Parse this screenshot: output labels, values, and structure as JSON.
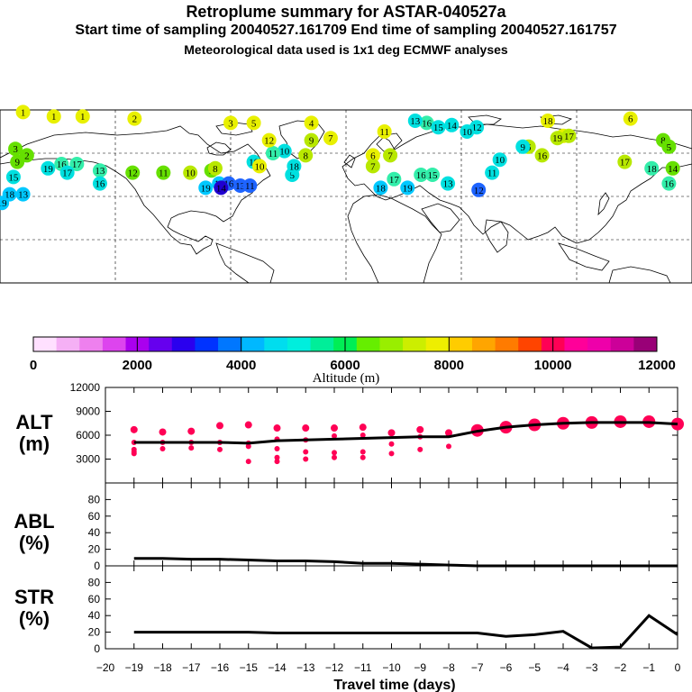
{
  "header": {
    "title": "Retroplume summary for ASTAR-040527a",
    "sampling": "Start time of sampling 20040527.161709      End time of sampling 20040527.161757",
    "met": "Meteorological data used is 1x1 deg ECMWF analyses"
  },
  "map": {
    "labels": [
      {
        "t": "1",
        "lon": -168,
        "lat": 89,
        "c": "#e8f000"
      },
      {
        "t": "1",
        "lon": -152,
        "lat": 87,
        "c": "#e8f000"
      },
      {
        "t": "1",
        "lon": -137,
        "lat": 87,
        "c": "#e8f000"
      },
      {
        "t": "2",
        "lon": -110,
        "lat": 86,
        "c": "#e8f000"
      },
      {
        "t": "3",
        "lon": -60,
        "lat": 84,
        "c": "#e8f000"
      },
      {
        "t": "5",
        "lon": -48,
        "lat": 84,
        "c": "#e8f000"
      },
      {
        "t": "4",
        "lon": -18,
        "lat": 84,
        "c": "#e8f000"
      },
      {
        "t": "6",
        "lon": 148,
        "lat": 86,
        "c": "#e8f000"
      },
      {
        "t": "6",
        "lon": 113,
        "lat": 78,
        "c": "#e8f000"
      },
      {
        "t": "6",
        "lon": 95,
        "lat": 73,
        "c": "#b8e800"
      },
      {
        "t": "18",
        "lon": 105,
        "lat": 85,
        "c": "#e8f000"
      },
      {
        "t": "16",
        "lon": 42,
        "lat": 84,
        "c": "#33eeaa"
      },
      {
        "t": "13",
        "lon": 36,
        "lat": 85,
        "c": "#00e0e0"
      },
      {
        "t": "15",
        "lon": 48,
        "lat": 82,
        "c": "#00e0e0"
      },
      {
        "t": "14",
        "lon": 55,
        "lat": 83,
        "c": "#00e0e0"
      },
      {
        "t": "12",
        "lon": 68,
        "lat": 82,
        "c": "#00e0e0"
      },
      {
        "t": "10",
        "lon": 63,
        "lat": 80,
        "c": "#00e0e0"
      },
      {
        "t": "11",
        "lon": 20,
        "lat": 80,
        "c": "#e8f000"
      },
      {
        "t": "9",
        "lon": -18,
        "lat": 76,
        "c": "#b8e800"
      },
      {
        "t": "7",
        "lon": -8,
        "lat": 77,
        "c": "#e8f000"
      },
      {
        "t": "8",
        "lon": -21,
        "lat": 69,
        "c": "#b8e800"
      },
      {
        "t": "10",
        "lon": -32,
        "lat": 71,
        "c": "#00e0e0"
      },
      {
        "t": "10",
        "lon": -48,
        "lat": 66,
        "c": "#00e0e0"
      },
      {
        "t": "11",
        "lon": -38,
        "lat": 70,
        "c": "#33eeaa"
      },
      {
        "t": "5",
        "lon": -28,
        "lat": 60,
        "c": "#00e0e0"
      },
      {
        "t": "7",
        "lon": 23,
        "lat": 69,
        "c": "#b8e800"
      },
      {
        "t": "6",
        "lon": 14,
        "lat": 69,
        "c": "#e8f000"
      },
      {
        "t": "7",
        "lon": 14,
        "lat": 64,
        "c": "#b8e800"
      },
      {
        "t": "17",
        "lon": 25,
        "lat": 58,
        "c": "#33eeaa"
      },
      {
        "t": "16",
        "lon": 39,
        "lat": 60,
        "c": "#33eeaa"
      },
      {
        "t": "15",
        "lon": 45,
        "lat": 60,
        "c": "#33eeaa"
      },
      {
        "t": "13",
        "lon": 53,
        "lat": 56,
        "c": "#00e0e0"
      },
      {
        "t": "19",
        "lon": 32,
        "lat": 54,
        "c": "#00c8ff"
      },
      {
        "t": "18",
        "lon": 18,
        "lat": 54,
        "c": "#00c8ff"
      },
      {
        "t": "12",
        "lon": 69,
        "lat": 53,
        "c": "#1e64ff"
      },
      {
        "t": "11",
        "lon": 76,
        "lat": 61,
        "c": "#00e0e0"
      },
      {
        "t": "10",
        "lon": 80,
        "lat": 67,
        "c": "#00e0e0"
      },
      {
        "t": "9",
        "lon": 92,
        "lat": 73,
        "c": "#00e0e0"
      },
      {
        "t": "16",
        "lon": 102,
        "lat": 69,
        "c": "#b8e800"
      },
      {
        "t": "19",
        "lon": 110,
        "lat": 77,
        "c": "#b8e800"
      },
      {
        "t": "17",
        "lon": 116,
        "lat": 78,
        "c": "#b8e800"
      },
      {
        "t": "17",
        "lon": 145,
        "lat": 66,
        "c": "#b8e800"
      },
      {
        "t": "8",
        "lon": 165,
        "lat": 76,
        "c": "#66e000"
      },
      {
        "t": "5",
        "lon": 168,
        "lat": 73,
        "c": "#66e000"
      },
      {
        "t": "3",
        "lon": -172,
        "lat": 72,
        "c": "#66e000"
      },
      {
        "t": "2",
        "lon": -166,
        "lat": 69,
        "c": "#66e000"
      },
      {
        "t": "18",
        "lon": 159,
        "lat": 63,
        "c": "#33eeaa"
      },
      {
        "t": "14",
        "lon": 170,
        "lat": 63,
        "c": "#66e000"
      },
      {
        "t": "9",
        "lon": -171,
        "lat": 66,
        "c": "#66e000"
      },
      {
        "t": "16",
        "lon": 168,
        "lat": 56,
        "c": "#33eeaa"
      },
      {
        "t": "15",
        "lon": -173,
        "lat": 59,
        "c": "#00e0e0"
      },
      {
        "t": "13",
        "lon": -168,
        "lat": 51,
        "c": "#00c8ff"
      },
      {
        "t": "18",
        "lon": -175,
        "lat": 51,
        "c": "#00c8ff"
      },
      {
        "t": "19",
        "lon": -179,
        "lat": 47,
        "c": "#00c8ff"
      },
      {
        "t": "19",
        "lon": -155,
        "lat": 63,
        "c": "#00e0e0"
      },
      {
        "t": "17",
        "lon": -140,
        "lat": 65,
        "c": "#33eeaa"
      },
      {
        "t": "16",
        "lon": -148,
        "lat": 65,
        "c": "#33eeaa"
      },
      {
        "t": "17",
        "lon": -145,
        "lat": 61,
        "c": "#00e0e0"
      },
      {
        "t": "13",
        "lon": -128,
        "lat": 62,
        "c": "#33eeaa"
      },
      {
        "t": "16",
        "lon": -128,
        "lat": 56,
        "c": "#00e0e0"
      },
      {
        "t": "12",
        "lon": -111,
        "lat": 61,
        "c": "#66e000"
      },
      {
        "t": "11",
        "lon": -95,
        "lat": 61,
        "c": "#66e000"
      },
      {
        "t": "10",
        "lon": -81,
        "lat": 61,
        "c": "#b8e800"
      },
      {
        "t": "9",
        "lon": -70,
        "lat": 62,
        "c": "#66e000"
      },
      {
        "t": "19",
        "lon": -73,
        "lat": 54,
        "c": "#00c8ff"
      },
      {
        "t": "17",
        "lon": -66,
        "lat": 56,
        "c": "#00c8ff"
      },
      {
        "t": "16",
        "lon": -61,
        "lat": 56,
        "c": "#1e64ff"
      },
      {
        "t": "13",
        "lon": -55,
        "lat": 55,
        "c": "#1e64ff"
      },
      {
        "t": "14",
        "lon": -65,
        "lat": 54,
        "c": "#2000d0"
      },
      {
        "t": "11",
        "lon": -50,
        "lat": 55,
        "c": "#1e64ff"
      },
      {
        "t": "8",
        "lon": -68,
        "lat": 63,
        "c": "#b8e800"
      },
      {
        "t": "18",
        "lon": -27,
        "lat": 64,
        "c": "#00e0e0"
      },
      {
        "t": "10",
        "lon": -45,
        "lat": 64,
        "c": "#e8f000"
      },
      {
        "t": "12",
        "lon": -40,
        "lat": 76,
        "c": "#e8f000"
      }
    ]
  },
  "colorbar": {
    "colors": [
      "#ffe0ff",
      "#f5b0f5",
      "#ee80ee",
      "#dd44ee",
      "#aa00ee",
      "#6600ee",
      "#2a00ee",
      "#0033ff",
      "#0077ff",
      "#00b8ff",
      "#00ddee",
      "#00eedd",
      "#00ee99",
      "#00ee55",
      "#66ee00",
      "#99ee00",
      "#ccee00",
      "#eeee00",
      "#ffcc00",
      "#ffa500",
      "#ff7b00",
      "#ff4400",
      "#ff0055",
      "#ff0099",
      "#ee00aa",
      "#cc0099",
      "#990077"
    ],
    "tick_values": [
      0,
      2000,
      4000,
      6000,
      8000,
      10000,
      12000
    ],
    "tick_labels": [
      "0",
      "2000",
      "4000",
      "6000",
      "8000",
      "10000",
      "12000"
    ],
    "label": "Altitude (m)"
  },
  "chart_data": [
    {
      "type": "line",
      "panel": "ALT",
      "ylabel": "ALT (m)",
      "ylim": [
        0,
        12000
      ],
      "yticks": [
        3000,
        6000,
        9000,
        12000
      ],
      "x": [
        -19,
        -18,
        -17,
        -16,
        -15,
        -14,
        -13,
        -12,
        -11,
        -10,
        -9,
        -8,
        -7,
        -6,
        -5,
        -4,
        -3,
        -2,
        -1,
        0
      ],
      "values": [
        5100,
        5100,
        5100,
        5100,
        5000,
        5300,
        5400,
        5500,
        5600,
        5700,
        5800,
        5800,
        6500,
        7000,
        7300,
        7500,
        7600,
        7600,
        7600,
        7400
      ],
      "clusters": [
        {
          "x": -19,
          "y": [
            6700,
            5100,
            4200,
            3900,
            3700
          ]
        },
        {
          "x": -18,
          "y": [
            6400,
            5100,
            4300
          ]
        },
        {
          "x": -17,
          "y": [
            6500,
            5100,
            4400
          ]
        },
        {
          "x": -16,
          "y": [
            7200,
            5100,
            4200
          ]
        },
        {
          "x": -15,
          "y": [
            7300,
            5000,
            4600,
            2700
          ]
        },
        {
          "x": -14,
          "y": [
            6900,
            5500,
            4300,
            3200,
            2700
          ]
        },
        {
          "x": -13,
          "y": [
            6900,
            5400,
            3900,
            3000
          ]
        },
        {
          "x": -12,
          "y": [
            6900,
            5900,
            3800,
            3200
          ]
        },
        {
          "x": -11,
          "y": [
            7000,
            6000,
            3900,
            3200
          ]
        },
        {
          "x": -10,
          "y": [
            6300,
            4900,
            3700
          ]
        },
        {
          "x": -9,
          "y": [
            6700,
            5800,
            4200
          ]
        },
        {
          "x": -8,
          "y": [
            6300,
            6000,
            4600
          ]
        },
        {
          "x": -7,
          "y": [
            6600
          ]
        },
        {
          "x": -6,
          "y": [
            7000
          ]
        },
        {
          "x": -5,
          "y": [
            7300
          ]
        },
        {
          "x": -4,
          "y": [
            7500
          ]
        },
        {
          "x": -3,
          "y": [
            7600
          ]
        },
        {
          "x": -2,
          "y": [
            7700
          ]
        },
        {
          "x": -1,
          "y": [
            7700
          ]
        },
        {
          "x": 0,
          "y": [
            7400
          ]
        }
      ]
    },
    {
      "type": "line",
      "panel": "ABL",
      "ylabel": "ABL (%)",
      "ylim": [
        0,
        100
      ],
      "yticks": [
        0,
        20,
        40,
        60,
        80
      ],
      "x": [
        -19,
        -18,
        -17,
        -16,
        -15,
        -14,
        -13,
        -12,
        -11,
        -10,
        -9,
        -8,
        -7,
        -6,
        -5,
        -4,
        -3,
        -2,
        -1,
        0
      ],
      "values": [
        9,
        9,
        8,
        8,
        7,
        6,
        6,
        5,
        3,
        3,
        2,
        1,
        0,
        0,
        0,
        0,
        0,
        0,
        0,
        0
      ]
    },
    {
      "type": "line",
      "panel": "STR",
      "ylabel": "STR (%)",
      "ylim": [
        0,
        100
      ],
      "yticks": [
        0,
        20,
        40,
        60,
        80
      ],
      "x": [
        -19,
        -18,
        -17,
        -16,
        -15,
        -14,
        -13,
        -12,
        -11,
        -10,
        -9,
        -8,
        -7,
        -6,
        -5,
        -4,
        -3,
        -2,
        -1,
        0
      ],
      "values": [
        20,
        20,
        20,
        20,
        20,
        19,
        19,
        19,
        19,
        19,
        19,
        19,
        19,
        15,
        17,
        21,
        1,
        2,
        40,
        17
      ]
    }
  ],
  "xaxis": {
    "xlim": [
      -20,
      0
    ],
    "ticks": [
      -20,
      -19,
      -18,
      -17,
      -16,
      -15,
      -14,
      -13,
      -12,
      -11,
      -10,
      -9,
      -8,
      -7,
      -6,
      -5,
      -4,
      -3,
      -2,
      -1,
      0
    ],
    "tick_labels": [
      "−20",
      "−19",
      "−18",
      "−17",
      "−16",
      "−15",
      "−14",
      "−13",
      "−12",
      "−11",
      "−10",
      "−9",
      "−8",
      "−7",
      "−6",
      "−5",
      "−4",
      "−3",
      "−2",
      "−1",
      "0"
    ],
    "label": "Travel time (days)"
  },
  "panel_labels": {
    "alt_top": "ALT",
    "alt_bottom": "(m)",
    "abl_top": "ABL",
    "abl_bottom": "(%)",
    "str_top": "STR",
    "str_bottom": "(%)"
  },
  "colors": {
    "line": "#000000",
    "cluster": "#ff0055"
  }
}
